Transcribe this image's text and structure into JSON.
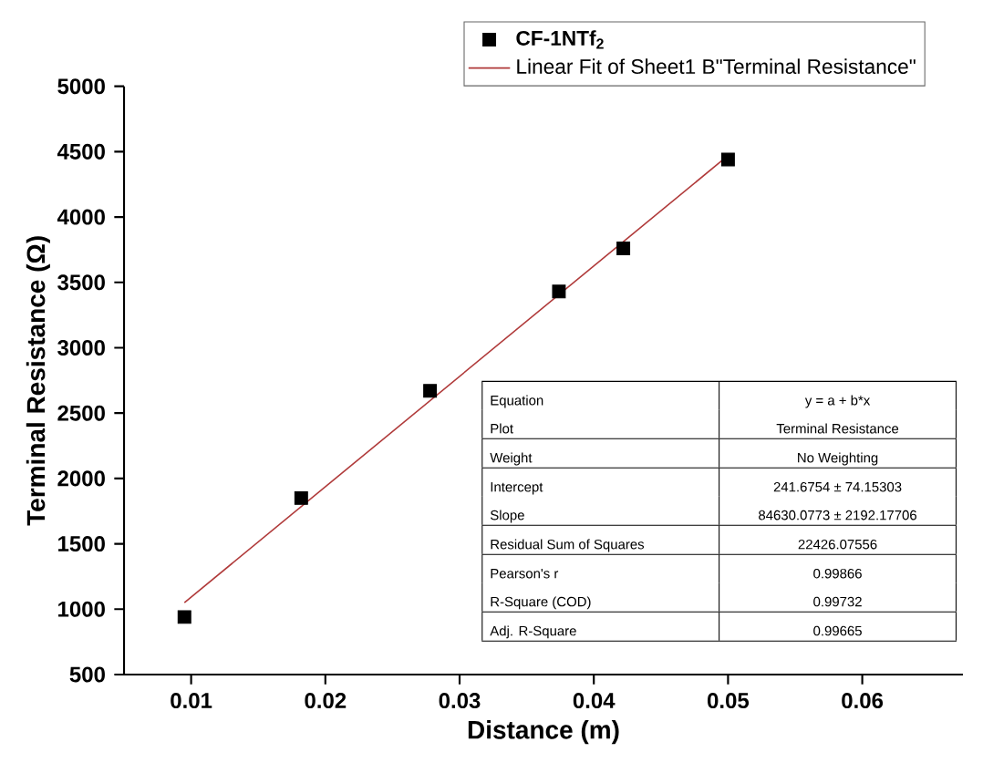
{
  "chart_data": {
    "type": "scatter",
    "xlabel": "Distance (m)",
    "ylabel": "Terminal Resistance (Ω)",
    "xlim": [
      0.005,
      0.0675
    ],
    "ylim": [
      500,
      5000
    ],
    "xticks": [
      0.01,
      0.02,
      0.03,
      0.04,
      0.05,
      0.06
    ],
    "yticks": [
      500,
      1000,
      1500,
      2000,
      2500,
      3000,
      3500,
      4000,
      4500,
      5000
    ],
    "grid": false,
    "legend": "top",
    "series": [
      {
        "name": "CF-1NTf$_{2}$",
        "marker": "square",
        "color": "#000000",
        "x": [
          0.0095,
          0.0182,
          0.0278,
          0.0374,
          0.0422,
          0.05
        ],
        "values": [
          940,
          1850,
          2670,
          3430,
          3760,
          4440
        ]
      },
      {
        "name": "Linear Fit of Sheet1 B\"Terminal Resistance\"",
        "type": "line",
        "marker": "none",
        "line_style": "solid",
        "color": "#b03a3a",
        "x": [
          0.0095,
          0.05
        ],
        "values": [
          1050,
          4470
        ]
      }
    ],
    "annotations": [
      "Equation",
      "y = a + b*x",
      "Plot",
      "Terminal Resistance",
      "Weight",
      "No Weighting",
      "Intercept",
      "241.6754 ± 74.15303",
      "Slope",
      "84630.0773 ± 2192.17706",
      "Residual Sum of Squares",
      "22426.07556",
      "Pearson's r",
      "0.99866",
      "R-Square (COD)",
      "0.99732",
      "Adj. R-Square",
      "0.99665"
    ]
  }
}
